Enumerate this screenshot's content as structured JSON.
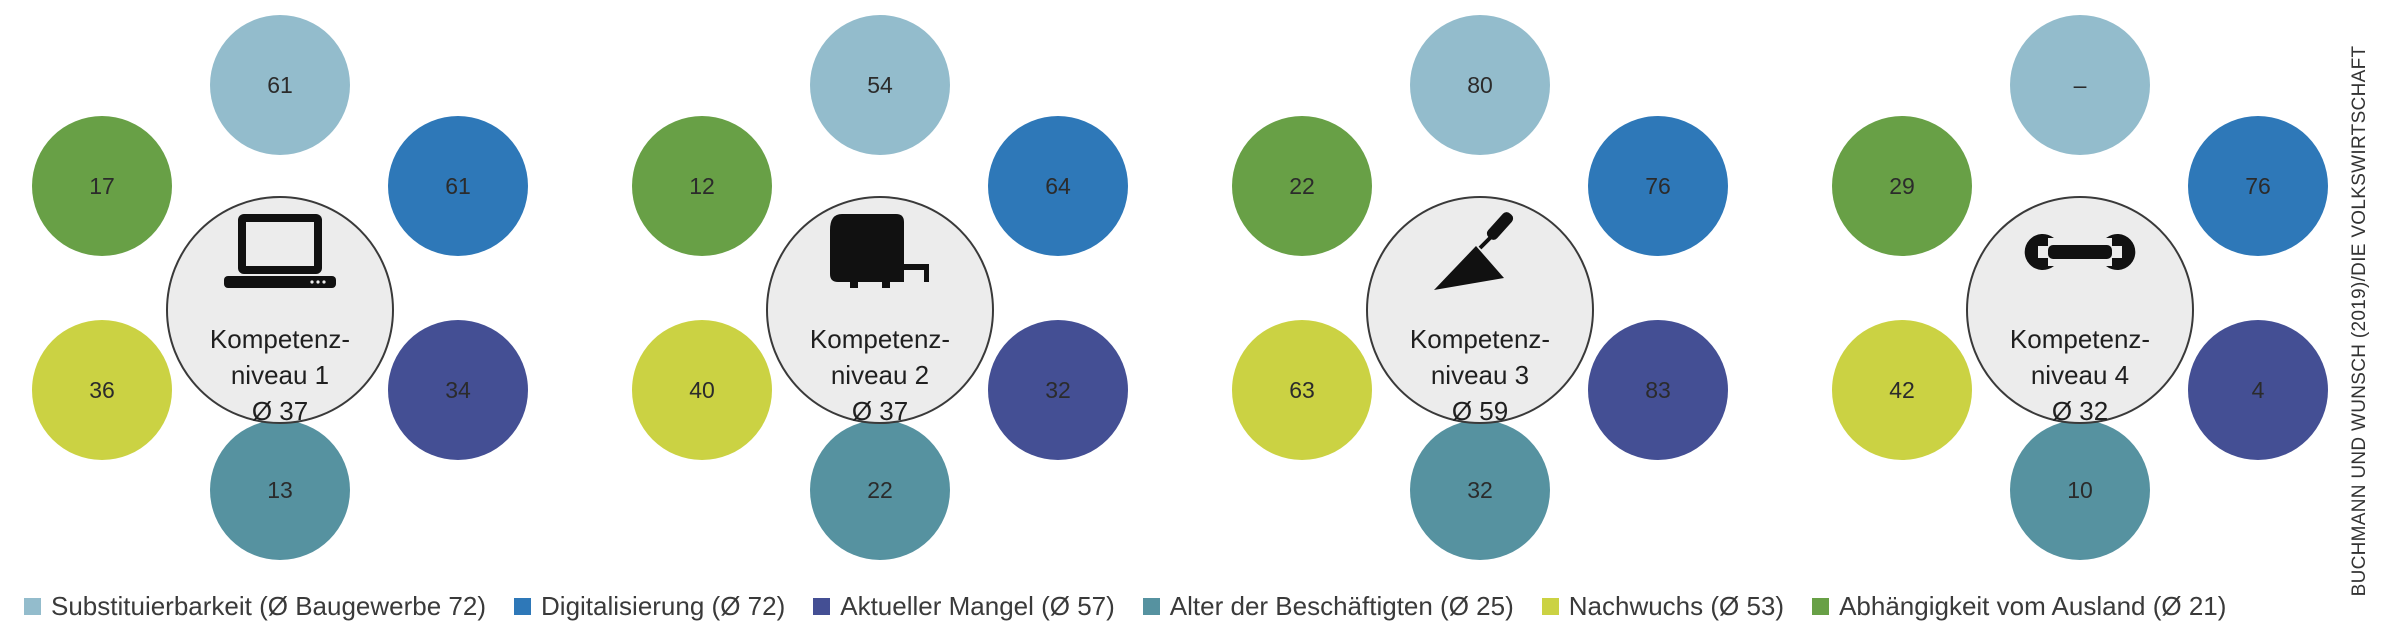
{
  "chart_data": [
    {
      "type": "bubble-cluster",
      "center": {
        "line1": "Kompetenz-",
        "line2": "niveau 1",
        "avg": "Ø 37",
        "icon": "laptop-icon"
      },
      "values": {
        "substituierbarkeit": "61",
        "digitalisierung": "61",
        "mangel": "34",
        "alter": "13",
        "nachwuchs": "36",
        "ausland": "17"
      }
    },
    {
      "type": "bubble-cluster",
      "center": {
        "line1": "Kompetenz-",
        "line2": "niveau 2",
        "avg": "Ø 37",
        "icon": "tape-measure-icon"
      },
      "values": {
        "substituierbarkeit": "54",
        "digitalisierung": "64",
        "mangel": "32",
        "alter": "22",
        "nachwuchs": "40",
        "ausland": "12"
      }
    },
    {
      "type": "bubble-cluster",
      "center": {
        "line1": "Kompetenz-",
        "line2": "niveau 3",
        "avg": "Ø 59",
        "icon": "trowel-icon"
      },
      "values": {
        "substituierbarkeit": "80",
        "digitalisierung": "76",
        "mangel": "83",
        "alter": "32",
        "nachwuchs": "63",
        "ausland": "22"
      }
    },
    {
      "type": "bubble-cluster",
      "center": {
        "line1": "Kompetenz-",
        "line2": "niveau 4",
        "avg": "Ø 32",
        "icon": "wrench-icon"
      },
      "values": {
        "substituierbarkeit": "–",
        "digitalisierung": "76",
        "mangel": "4",
        "alter": "10",
        "nachwuchs": "42",
        "ausland": "29"
      }
    }
  ],
  "categories": [
    {
      "key": "substituierbarkeit",
      "label": "Substituierbarkeit (Ø  Baugewerbe 72)",
      "color": "#93bccc"
    },
    {
      "key": "digitalisierung",
      "label": "Digitalisierung (Ø 72)",
      "color": "#2e78b8"
    },
    {
      "key": "mangel",
      "label": "Aktueller Mangel (Ø 57)",
      "color": "#444f94"
    },
    {
      "key": "alter",
      "label": "Alter der Beschäftigten (Ø 25)",
      "color": "#5692a0"
    },
    {
      "key": "nachwuchs",
      "label": "Nachwuchs (Ø 53)",
      "color": "#cbd243"
    },
    {
      "key": "ausland",
      "label": "Abhängigkeit vom Ausland (Ø 21)",
      "color": "#68a046"
    }
  ],
  "source_credit": "BUCHMANN UND WUNSCH (2019)/DIE VOLKSWIRTSCHAFT"
}
